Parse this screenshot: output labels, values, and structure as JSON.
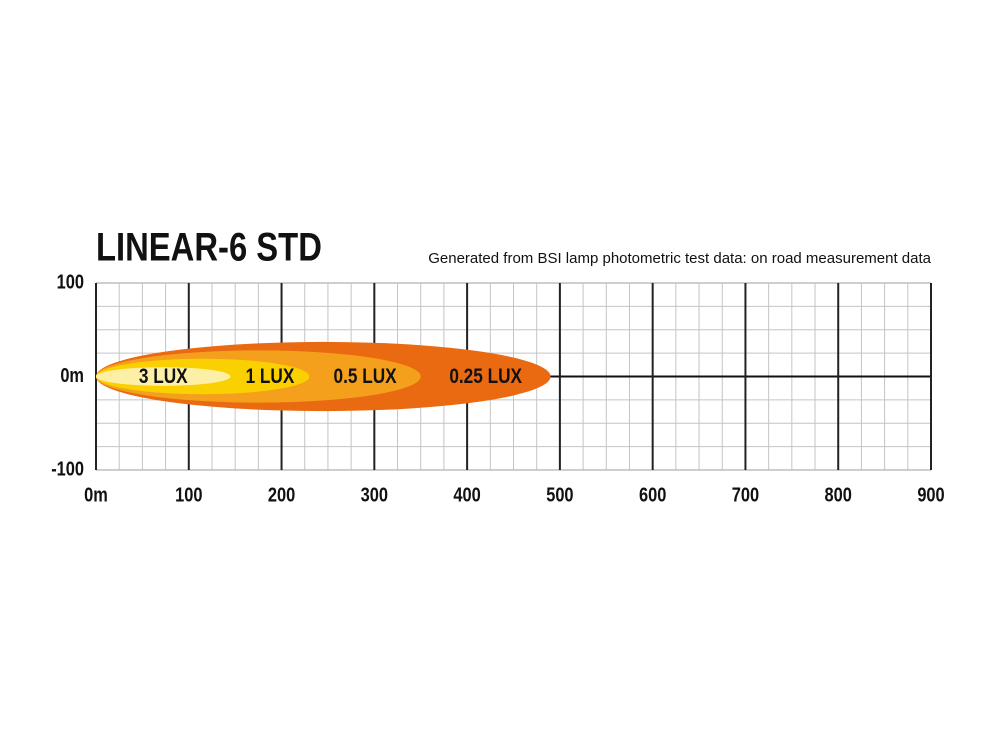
{
  "chart_data": {
    "type": "beam",
    "title": "LINEAR-6 STD",
    "subtitle": "Generated from BSI lamp photometric test data: on road measurement data",
    "xlim": [
      0,
      900
    ],
    "ylim": [
      -100,
      100
    ],
    "xticks": [
      {
        "value": 0,
        "label": "0m"
      },
      100,
      200,
      300,
      400,
      500,
      600,
      700,
      800,
      900
    ],
    "yticks": [
      -100,
      {
        "value": 0,
        "label": "0m"
      },
      100
    ],
    "xminorticks": [
      25,
      50,
      75,
      125,
      150,
      175,
      225,
      250,
      275,
      325,
      350,
      375,
      425,
      450,
      475,
      525,
      550,
      575,
      625,
      650,
      675,
      725,
      750,
      775,
      825,
      850,
      875
    ],
    "yminorticks": [
      -75,
      -50,
      -25,
      25,
      50,
      75
    ],
    "grid": true,
    "series": [
      {
        "name": "0.25 LUX",
        "color": "#ea6a12",
        "reach": 490,
        "half_width": 37
      },
      {
        "name": "0.5 LUX",
        "color": "#f5a01c",
        "reach": 350,
        "half_width": 28
      },
      {
        "name": "1 LUX",
        "color": "#fbd000",
        "reach": 230,
        "half_width": 19
      },
      {
        "name": "3 LUX",
        "color": "#fdf0a6",
        "reach": 145,
        "half_width": 10
      }
    ]
  }
}
